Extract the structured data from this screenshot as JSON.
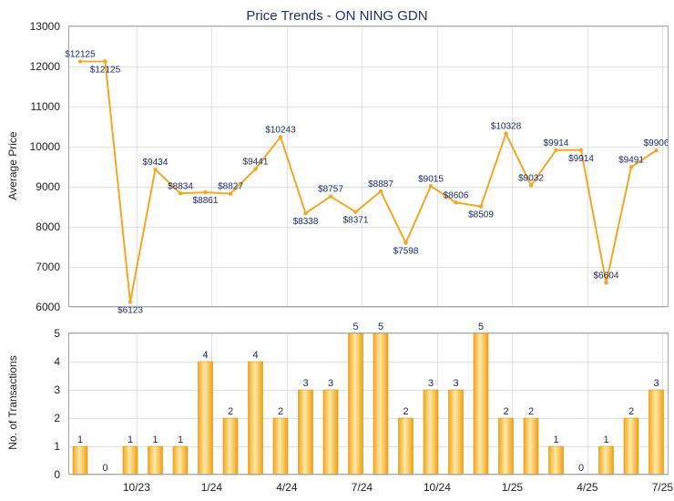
{
  "chart_data": [
    {
      "type": "line",
      "title": "Price Trends - ON NING GDN",
      "ylabel": "Average Price",
      "ylim": [
        6000,
        13000
      ],
      "yticks": [
        6000,
        7000,
        8000,
        9000,
        10000,
        11000,
        12000,
        13000
      ],
      "grid": true,
      "color": "#f5a623",
      "points": [
        {
          "x": 0,
          "y": 12125,
          "label": "$12125"
        },
        {
          "x": 1,
          "y": 12125,
          "label": "$12125"
        },
        {
          "x": 2,
          "y": 6123,
          "label": "$6123"
        },
        {
          "x": 3,
          "y": 9434,
          "label": "$9434"
        },
        {
          "x": 4,
          "y": 8834,
          "label": "$8834"
        },
        {
          "x": 5,
          "y": 8861,
          "label": "$8861"
        },
        {
          "x": 6,
          "y": 8827,
          "label": "$8827"
        },
        {
          "x": 7,
          "y": 9441,
          "label": "$9441"
        },
        {
          "x": 8,
          "y": 10243,
          "label": "$10243"
        },
        {
          "x": 9,
          "y": 8338,
          "label": "$8338"
        },
        {
          "x": 10,
          "y": 8757,
          "label": "$8757"
        },
        {
          "x": 11,
          "y": 8371,
          "label": "$8371"
        },
        {
          "x": 12,
          "y": 8887,
          "label": "$8887"
        },
        {
          "x": 13,
          "y": 7598,
          "label": "$7598"
        },
        {
          "x": 14,
          "y": 9015,
          "label": "$9015"
        },
        {
          "x": 15,
          "y": 8606,
          "label": "$8606"
        },
        {
          "x": 16,
          "y": 8509,
          "label": "$8509"
        },
        {
          "x": 17,
          "y": 10328,
          "label": "$10328"
        },
        {
          "x": 18,
          "y": 9032,
          "label": "$9032"
        },
        {
          "x": 19,
          "y": 9914,
          "label": "$9914"
        },
        {
          "x": 20,
          "y": 9914,
          "label": "$9914"
        },
        {
          "x": 21,
          "y": 6604,
          "label": "$6604"
        },
        {
          "x": 22,
          "y": 9491,
          "label": "$9491"
        },
        {
          "x": 23,
          "y": 9906,
          "label": "$9906"
        }
      ]
    },
    {
      "type": "bar",
      "ylabel": "No. of Transactions",
      "ylim": [
        0,
        5
      ],
      "yticks": [
        0,
        1,
        2,
        3,
        4,
        5
      ],
      "grid": true,
      "color": "#f5a623",
      "values": [
        1,
        0,
        1,
        1,
        1,
        4,
        2,
        4,
        2,
        3,
        3,
        5,
        5,
        2,
        3,
        3,
        5,
        2,
        2,
        1,
        0,
        1,
        2,
        3
      ],
      "xticks": [
        {
          "pos": 2.25,
          "label": "10/23"
        },
        {
          "pos": 5.25,
          "label": "1/24"
        },
        {
          "pos": 8.25,
          "label": "4/24"
        },
        {
          "pos": 11.25,
          "label": "7/24"
        },
        {
          "pos": 14.25,
          "label": "10/24"
        },
        {
          "pos": 17.25,
          "label": "1/25"
        },
        {
          "pos": 20.25,
          "label": "4/25"
        },
        {
          "pos": 23.25,
          "label": "7/25"
        }
      ]
    }
  ]
}
